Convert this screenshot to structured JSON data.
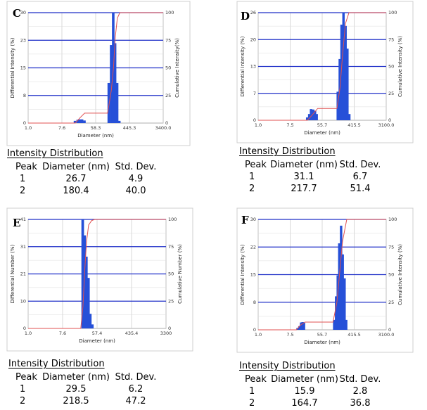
{
  "panels": [
    {
      "letter": "C",
      "ylabel_left": "Differential Intensity (%)",
      "ylabel_right": "Cumulative Intensity(%)",
      "xlabel": "Diameter (nm)",
      "x_ticks": [
        "1.0",
        "7.6",
        "58.3",
        "445.3",
        "3400.0"
      ],
      "y_left_ticks": [
        "0",
        "8",
        "15",
        "23",
        "30"
      ],
      "y_right_ticks": [
        "0",
        "25",
        "50",
        "75",
        "100"
      ],
      "table_title": "Intensity Distribution",
      "table_headers": [
        "Peak",
        "Diameter (nm)",
        "Std. Dev."
      ],
      "table_rows": [
        [
          "1",
          "26.7",
          "4.9"
        ],
        [
          "2",
          "180.4",
          "40.0"
        ]
      ]
    },
    {
      "letter": "D",
      "ylabel_left": "Differential Intensity (%)",
      "ylabel_right": "Cumulative Intensity (%)",
      "xlabel": "Diameter (nm)",
      "x_ticks": [
        "1.0",
        "7.5",
        "55.7",
        "415.5",
        "3100.0"
      ],
      "y_left_ticks": [
        "0",
        "7",
        "13",
        "20",
        "26"
      ],
      "y_right_ticks": [
        "0",
        "25",
        "50",
        "75",
        "100"
      ],
      "table_title": "Intensity Distribution",
      "table_headers": [
        "Peak",
        "Diameter (nm)",
        "Std. Dev."
      ],
      "table_rows": [
        [
          "1",
          "31.1",
          "6.7"
        ],
        [
          "2",
          "217.7",
          "51.4"
        ]
      ]
    },
    {
      "letter": "E",
      "ylabel_left": "Differential Number (%)",
      "ylabel_right": "Cumulative Number (%)",
      "xlabel": "Diameter (nm)",
      "x_ticks": [
        "1.0",
        "7.6",
        "57.4",
        "435.4",
        "3300"
      ],
      "y_left_ticks": [
        "0",
        "10",
        "21",
        "31",
        "41"
      ],
      "y_right_ticks": [
        "0",
        "25",
        "50",
        "75",
        "100"
      ],
      "table_title": "Intensity Distribution",
      "table_headers": [
        "Peak",
        "Diameter (nm)",
        "Std. Dev."
      ],
      "table_rows": [
        [
          "1",
          "29.5",
          "6.2"
        ],
        [
          "2",
          "218.5",
          "47.2"
        ]
      ]
    },
    {
      "letter": "F",
      "ylabel_left": "Differential Intensity (%)",
      "ylabel_right": "Cumulative Intensity (%)",
      "xlabel": "Diameter (nm)",
      "x_ticks": [
        "1.0",
        "7.5",
        "55.7",
        "415.5",
        "3100.0"
      ],
      "y_left_ticks": [
        "0",
        "8",
        "15",
        "22",
        "30"
      ],
      "y_right_ticks": [
        "0",
        "25",
        "50",
        "75",
        "100"
      ],
      "table_title": "Intensity Distribution",
      "table_headers": [
        "Peak",
        "Diameter (nm)",
        "Std. Dev."
      ],
      "table_rows": [
        [
          "1",
          "15.9",
          "2.8"
        ],
        [
          "2",
          "164.7",
          "36.8"
        ]
      ]
    }
  ],
  "chart_data": [
    {
      "type": "bar",
      "panel": "C",
      "x_scale": "log",
      "xlim": [
        1.0,
        3400.0
      ],
      "ylim": [
        0,
        30
      ],
      "ylim_right": [
        0,
        100
      ],
      "grid": true,
      "bar_color": "#2650d8",
      "line_color": "#e05050",
      "series": [
        {
          "type": "bar",
          "x": [
            17,
            20,
            23,
            26,
            30,
            130,
            150,
            170,
            190,
            215,
            245
          ],
          "values": [
            0.6,
            0.9,
            1.0,
            1.0,
            0.7,
            10.9,
            21.2,
            30.0,
            21.7,
            10.9,
            0.6
          ]
        },
        {
          "type": "line",
          "axis": "right",
          "x": [
            1,
            17,
            23,
            30,
            120,
            150,
            170,
            190,
            215,
            250,
            3400
          ],
          "values": [
            0,
            0,
            5,
            9,
            9,
            30,
            50,
            78,
            95,
            100,
            100
          ]
        }
      ]
    },
    {
      "type": "bar",
      "panel": "D",
      "x_scale": "log",
      "xlim": [
        1.0,
        3100.0
      ],
      "ylim": [
        0,
        26
      ],
      "ylim_right": [
        0,
        100
      ],
      "grid": true,
      "bar_color": "#2650d8",
      "line_color": "#e05050",
      "series": [
        {
          "type": "bar",
          "x": [
            22,
            25,
            28,
            32,
            36,
            40,
            150,
            170,
            190,
            215,
            245,
            275,
            310
          ],
          "values": [
            0.7,
            1.5,
            2.7,
            2.6,
            2.3,
            1.5,
            6.9,
            14.8,
            23.1,
            26.0,
            22.8,
            17.3,
            1.5
          ]
        },
        {
          "type": "line",
          "axis": "right",
          "x": [
            1,
            22,
            30,
            42,
            140,
            170,
            200,
            240,
            300,
            3100
          ],
          "values": [
            0,
            0,
            5,
            11,
            11,
            30,
            60,
            90,
            100,
            100
          ]
        }
      ]
    },
    {
      "type": "bar",
      "panel": "E",
      "x_scale": "log",
      "xlim": [
        1.0,
        3300.0
      ],
      "ylim": [
        0,
        41
      ],
      "ylim_right": [
        0,
        100
      ],
      "grid": true,
      "bar_color": "#2650d8",
      "line_color": "#e05050",
      "series": [
        {
          "type": "bar",
          "x": [
            25,
            28,
            31,
            35,
            39,
            44
          ],
          "values": [
            41.0,
            35.0,
            27.0,
            19.0,
            5.5,
            1.5
          ]
        },
        {
          "type": "line",
          "axis": "right",
          "x": [
            1,
            22,
            25,
            28,
            31,
            35,
            42,
            50,
            3300
          ],
          "values": [
            0,
            0,
            20,
            55,
            80,
            95,
            99,
            100,
            100
          ]
        }
      ]
    },
    {
      "type": "bar",
      "panel": "F",
      "x_scale": "log",
      "xlim": [
        1.0,
        3100.0
      ],
      "ylim": [
        0,
        30
      ],
      "ylim_right": [
        0,
        100
      ],
      "grid": true,
      "bar_color": "#2650d8",
      "line_color": "#e05050",
      "series": [
        {
          "type": "bar",
          "x": [
            12,
            13.5,
            15,
            16.5,
            18,
            120,
            135,
            150,
            165,
            185,
            205,
            230,
            255
          ],
          "values": [
            0.5,
            1.0,
            2.0,
            2.1,
            2.0,
            2.7,
            9.1,
            14.8,
            23.5,
            28.3,
            20.5,
            14.0,
            2.7
          ]
        },
        {
          "type": "line",
          "axis": "right",
          "x": [
            1,
            11,
            14,
            19,
            110,
            140,
            165,
            200,
            260,
            3100
          ],
          "values": [
            0,
            0,
            4,
            7,
            7,
            25,
            50,
            80,
            100,
            100
          ]
        }
      ]
    }
  ]
}
